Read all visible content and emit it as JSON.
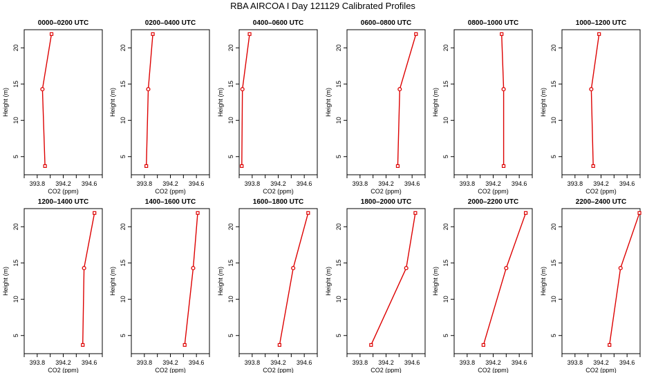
{
  "figure": {
    "title": "RBA AIRCOA I  Day 121129  Calibrated Profiles"
  },
  "chart_data": [
    {
      "type": "line",
      "title": "0000–0200 UTC",
      "xlabel": "CO2 (ppm)",
      "ylabel": "Height (m)",
      "xlim": [
        393.6,
        394.8
      ],
      "ylim": [
        2.5,
        22.5
      ],
      "xticks": [
        "393.8",
        "394.2",
        "394.6"
      ],
      "yticks": [
        "5",
        "10",
        "15",
        "20"
      ],
      "points": [
        {
          "x": 393.92,
          "y": 3.7
        },
        {
          "x": 393.88,
          "y": 14.3
        },
        {
          "x": 394.02,
          "y": 21.9
        }
      ]
    },
    {
      "type": "line",
      "title": "0200–0400 UTC",
      "xlabel": "CO2 (ppm)",
      "ylabel": "Height (m)",
      "xlim": [
        393.6,
        394.8
      ],
      "ylim": [
        2.5,
        22.5
      ],
      "xticks": [
        "393.8",
        "394.2",
        "394.6"
      ],
      "yticks": [
        "5",
        "10",
        "15",
        "20"
      ],
      "points": [
        {
          "x": 393.83,
          "y": 3.7
        },
        {
          "x": 393.86,
          "y": 14.3
        },
        {
          "x": 393.93,
          "y": 21.9
        }
      ]
    },
    {
      "type": "line",
      "title": "0400–0600 UTC",
      "xlabel": "CO2 (ppm)",
      "ylabel": "Height (m)",
      "xlim": [
        393.6,
        394.8
      ],
      "ylim": [
        2.5,
        22.5
      ],
      "xticks": [
        "393.8",
        "394.2",
        "394.6"
      ],
      "yticks": [
        "5",
        "10",
        "15",
        "20"
      ],
      "points": [
        {
          "x": 393.64,
          "y": 3.7
        },
        {
          "x": 393.65,
          "y": 14.3
        },
        {
          "x": 393.76,
          "y": 21.9
        }
      ]
    },
    {
      "type": "line",
      "title": "0600–0800 UTC",
      "xlabel": "CO2 (ppm)",
      "ylabel": "Height (m)",
      "xlim": [
        393.6,
        394.8
      ],
      "ylim": [
        2.5,
        22.5
      ],
      "xticks": [
        "393.8",
        "394.2",
        "394.6"
      ],
      "yticks": [
        "5",
        "10",
        "15",
        "20"
      ],
      "points": [
        {
          "x": 394.38,
          "y": 3.7
        },
        {
          "x": 394.41,
          "y": 14.3
        },
        {
          "x": 394.66,
          "y": 21.9
        }
      ]
    },
    {
      "type": "line",
      "title": "0800–1000 UTC",
      "xlabel": "CO2 (ppm)",
      "ylabel": "Height (m)",
      "xlim": [
        393.6,
        394.8
      ],
      "ylim": [
        2.5,
        22.5
      ],
      "xticks": [
        "393.8",
        "394.2",
        "394.6"
      ],
      "yticks": [
        "5",
        "10",
        "15",
        "20"
      ],
      "points": [
        {
          "x": 394.36,
          "y": 3.7
        },
        {
          "x": 394.36,
          "y": 14.3
        },
        {
          "x": 394.33,
          "y": 21.9
        }
      ]
    },
    {
      "type": "line",
      "title": "1000–1200 UTC",
      "xlabel": "CO2 (ppm)",
      "ylabel": "Height (m)",
      "xlim": [
        393.6,
        394.8
      ],
      "ylim": [
        2.5,
        22.5
      ],
      "xticks": [
        "393.8",
        "394.2",
        "394.6"
      ],
      "yticks": [
        "5",
        "10",
        "15",
        "20"
      ],
      "points": [
        {
          "x": 394.08,
          "y": 3.7
        },
        {
          "x": 394.05,
          "y": 14.3
        },
        {
          "x": 394.17,
          "y": 21.9
        }
      ]
    },
    {
      "type": "line",
      "title": "1200–1400 UTC",
      "xlabel": "CO2 (ppm)",
      "ylabel": "Height (m)",
      "xlim": [
        393.6,
        394.8
      ],
      "ylim": [
        2.5,
        22.5
      ],
      "xticks": [
        "393.8",
        "394.2",
        "394.6"
      ],
      "yticks": [
        "5",
        "10",
        "15",
        "20"
      ],
      "points": [
        {
          "x": 394.5,
          "y": 3.7
        },
        {
          "x": 394.52,
          "y": 14.3
        },
        {
          "x": 394.68,
          "y": 21.9
        }
      ]
    },
    {
      "type": "line",
      "title": "1400–1600 UTC",
      "xlabel": "CO2 (ppm)",
      "ylabel": "Height (m)",
      "xlim": [
        393.6,
        394.8
      ],
      "ylim": [
        2.5,
        22.5
      ],
      "xticks": [
        "393.8",
        "394.2",
        "394.6"
      ],
      "yticks": [
        "5",
        "10",
        "15",
        "20"
      ],
      "points": [
        {
          "x": 394.42,
          "y": 3.7
        },
        {
          "x": 394.55,
          "y": 14.3
        },
        {
          "x": 394.62,
          "y": 21.9
        }
      ]
    },
    {
      "type": "line",
      "title": "1600–1800 UTC",
      "xlabel": "CO2 (ppm)",
      "ylabel": "Height (m)",
      "xlim": [
        393.6,
        394.8
      ],
      "ylim": [
        2.5,
        22.5
      ],
      "xticks": [
        "393.8",
        "394.2",
        "394.6"
      ],
      "yticks": [
        "5",
        "10",
        "15",
        "20"
      ],
      "points": [
        {
          "x": 394.22,
          "y": 3.7
        },
        {
          "x": 394.43,
          "y": 14.3
        },
        {
          "x": 394.66,
          "y": 21.9
        }
      ]
    },
    {
      "type": "line",
      "title": "1800–2000 UTC",
      "xlabel": "CO2 (ppm)",
      "ylabel": "Height (m)",
      "xlim": [
        393.6,
        394.8
      ],
      "ylim": [
        2.5,
        22.5
      ],
      "xticks": [
        "393.8",
        "394.2",
        "394.6"
      ],
      "yticks": [
        "5",
        "10",
        "15",
        "20"
      ],
      "points": [
        {
          "x": 393.97,
          "y": 3.7
        },
        {
          "x": 394.51,
          "y": 14.3
        },
        {
          "x": 394.65,
          "y": 21.9
        }
      ]
    },
    {
      "type": "line",
      "title": "2000–2200 UTC",
      "xlabel": "CO2 (ppm)",
      "ylabel": "Height (m)",
      "xlim": [
        393.6,
        394.8
      ],
      "ylim": [
        2.5,
        22.5
      ],
      "xticks": [
        "393.8",
        "394.2",
        "394.6"
      ],
      "yticks": [
        "5",
        "10",
        "15",
        "20"
      ],
      "points": [
        {
          "x": 394.05,
          "y": 3.7
        },
        {
          "x": 394.4,
          "y": 14.3
        },
        {
          "x": 394.7,
          "y": 21.9
        }
      ]
    },
    {
      "type": "line",
      "title": "2200–2400 UTC",
      "xlabel": "CO2 (ppm)",
      "ylabel": "Height (m)",
      "xlim": [
        393.6,
        394.8
      ],
      "ylim": [
        2.5,
        22.5
      ],
      "xticks": [
        "393.8",
        "394.2",
        "394.6"
      ],
      "yticks": [
        "5",
        "10",
        "15",
        "20"
      ],
      "points": [
        {
          "x": 394.33,
          "y": 3.7
        },
        {
          "x": 394.5,
          "y": 14.3
        },
        {
          "x": 394.79,
          "y": 21.9
        }
      ]
    }
  ],
  "colors": {
    "series": "#dd0000",
    "axes": "#000000",
    "background": "#ffffff"
  }
}
